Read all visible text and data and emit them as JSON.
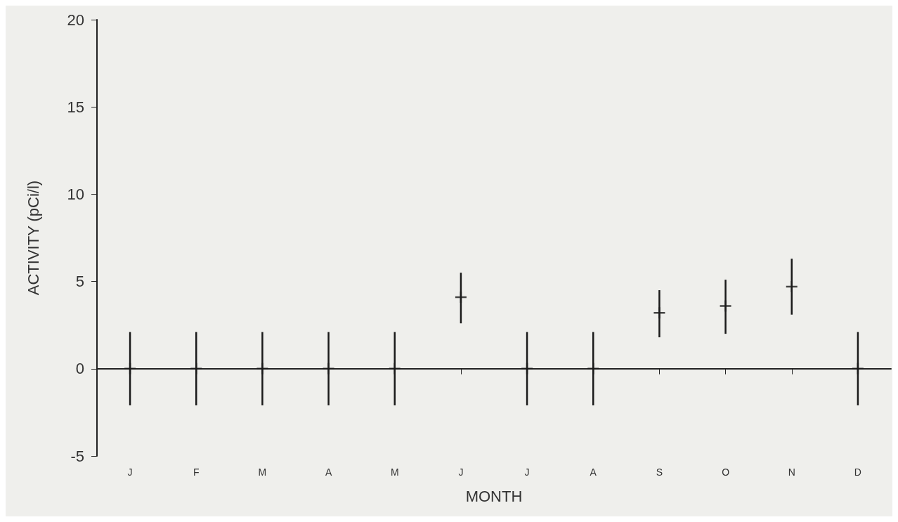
{
  "chart_data": {
    "type": "scatter",
    "xlabel": "MONTH",
    "ylabel": "ACTIVITY (pCi/l)",
    "categories": [
      "J",
      "F",
      "M",
      "A",
      "M",
      "J",
      "J",
      "A",
      "S",
      "O",
      "N",
      "D"
    ],
    "values": [
      0,
      0,
      0,
      0,
      0,
      4.1,
      0,
      0,
      3.2,
      3.6,
      4.7,
      0
    ],
    "errors": [
      2.1,
      2.1,
      2.1,
      2.1,
      2.1,
      [
        2.6,
        5.5
      ],
      2.1,
      2.1,
      [
        1.8,
        4.5
      ],
      [
        2.0,
        5.1
      ],
      [
        3.1,
        6.3
      ],
      2.1
    ],
    "color": "#1a1a1a",
    "marker": "cross",
    "ylim": [
      -5,
      20
    ],
    "yticks": [
      -5,
      0,
      5,
      10,
      15,
      20
    ],
    "ref_lines": [
      {
        "axis": "y",
        "value": 0
      }
    ],
    "grid": false
  }
}
